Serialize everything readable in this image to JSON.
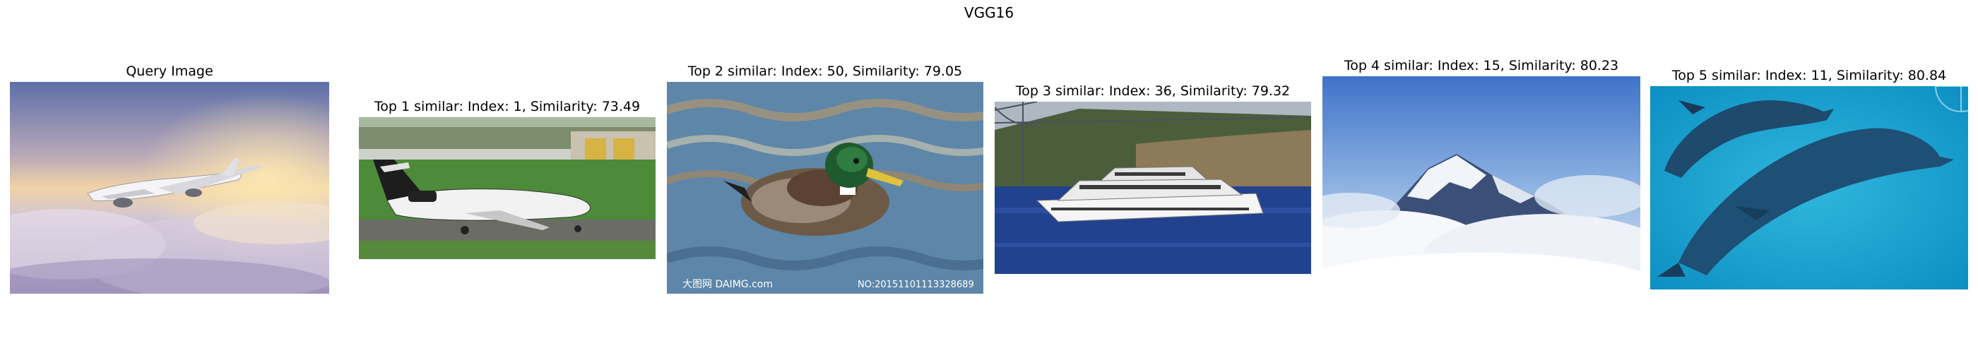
{
  "figure": {
    "title": "VGG16",
    "panels": [
      {
        "title": "Query Image",
        "image": "airplane-flying-above-clouds-at-sunset"
      },
      {
        "title": "Top 1 similar: Index: 1, Similarity: 73.49",
        "image": "white-jet-on-runway"
      },
      {
        "title": "Top 2 similar: Index: 50, Similarity: 79.05",
        "image": "mallard-duck-swimming",
        "watermark_left": "大图网 DAIMG.com",
        "watermark_right": "NO:20151101113328689"
      },
      {
        "title": "Top 3 similar: Index: 36, Similarity: 79.32",
        "image": "white-yacht-under-bridge"
      },
      {
        "title": "Top 4 similar: Index: 15, Similarity: 80.23",
        "image": "snowy-mountain-peak-above-clouds"
      },
      {
        "title": "Top 5 similar: Index: 11, Similarity: 80.84",
        "image": "dolphins-swimming-underwater"
      }
    ]
  }
}
